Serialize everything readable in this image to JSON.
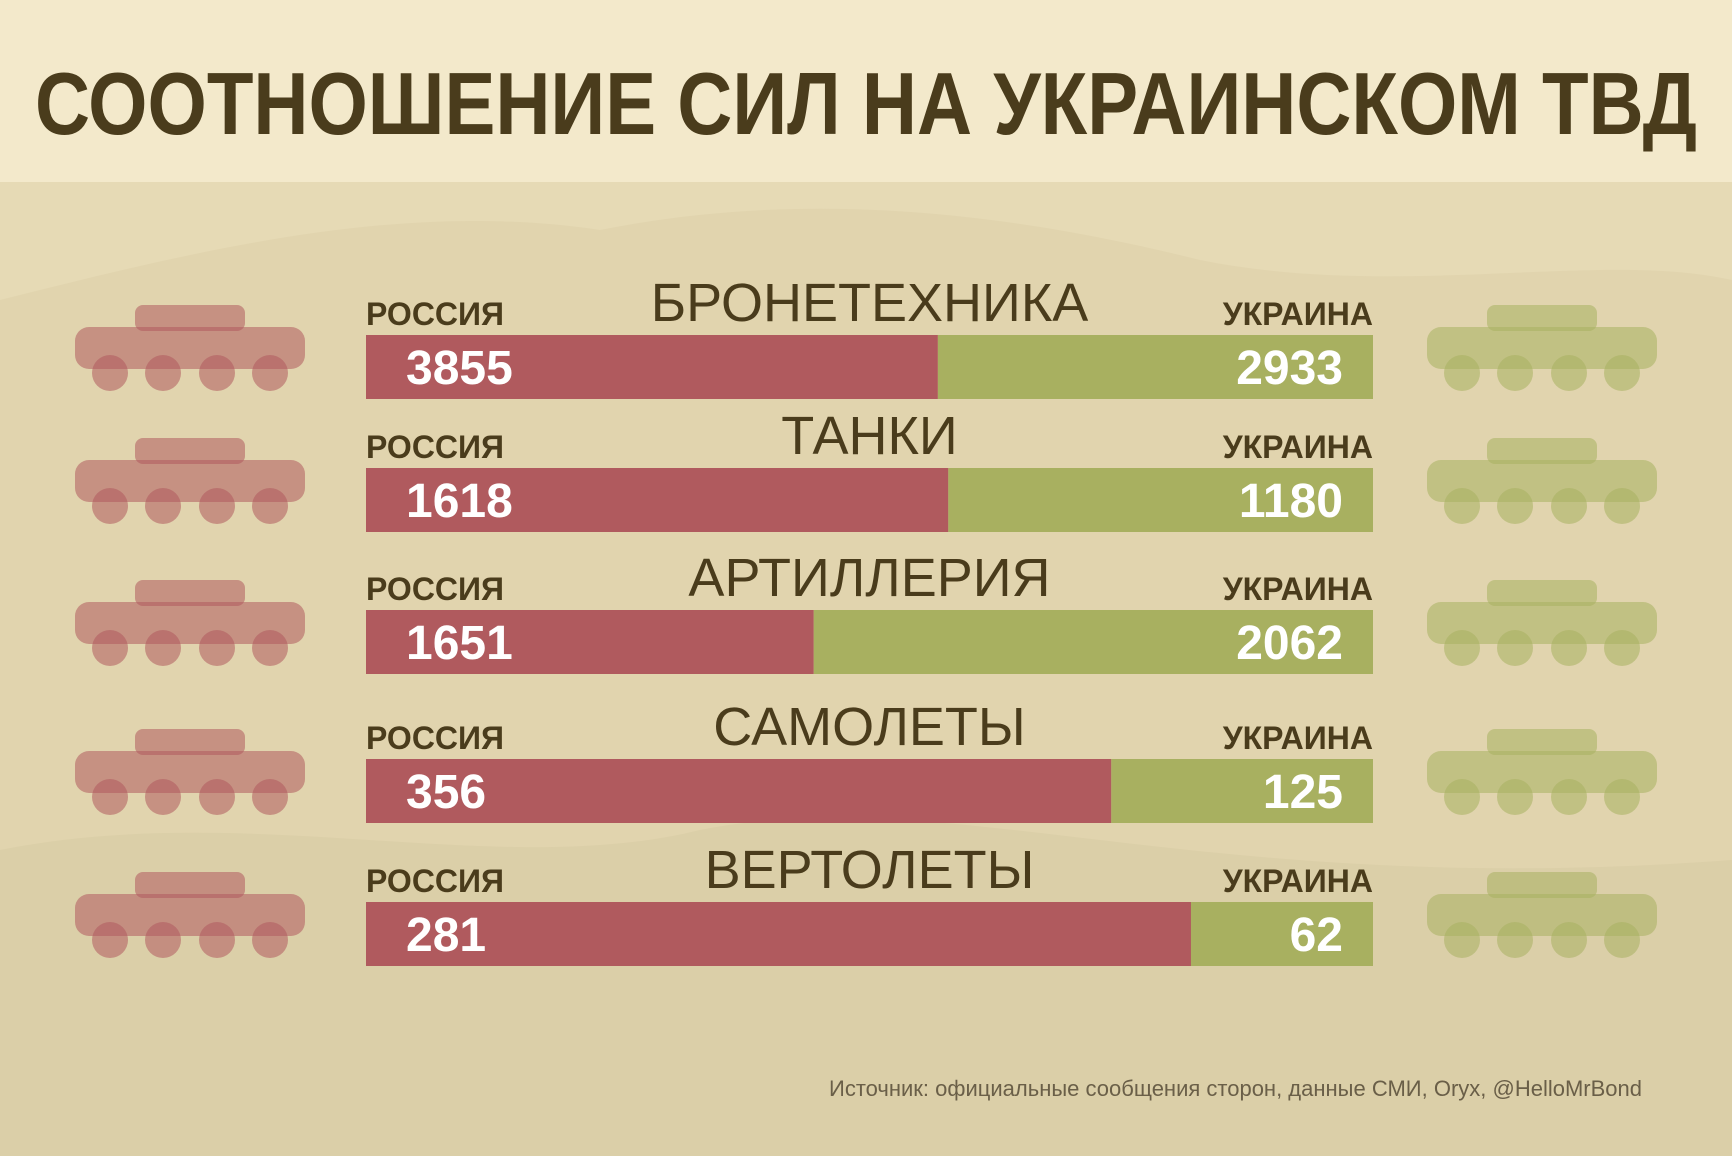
{
  "chart_data": {
    "type": "stacked-bar-percent",
    "title": "СООТНОШЕНИЕ СИЛ НА УКРАИНСКОМ ТВД",
    "categories": [
      "БРОНЕТЕХНИКА",
      "ТАНКИ",
      "АРТИЛЛЕРИЯ",
      "САМОЛЕТЫ",
      "ВЕРТОЛЕТЫ"
    ],
    "series": [
      {
        "name": "РОССИЯ",
        "color": "#b05a5e",
        "values": [
          3855,
          1618,
          1651,
          356,
          281
        ]
      },
      {
        "name": "УКРАИНА",
        "color": "#a8b060",
        "values": [
          2933,
          1180,
          2062,
          125,
          62
        ]
      }
    ],
    "source": "Источник: официальные сообщения сторон, данные СМИ, Oryx, @HelloMrBond"
  }
}
